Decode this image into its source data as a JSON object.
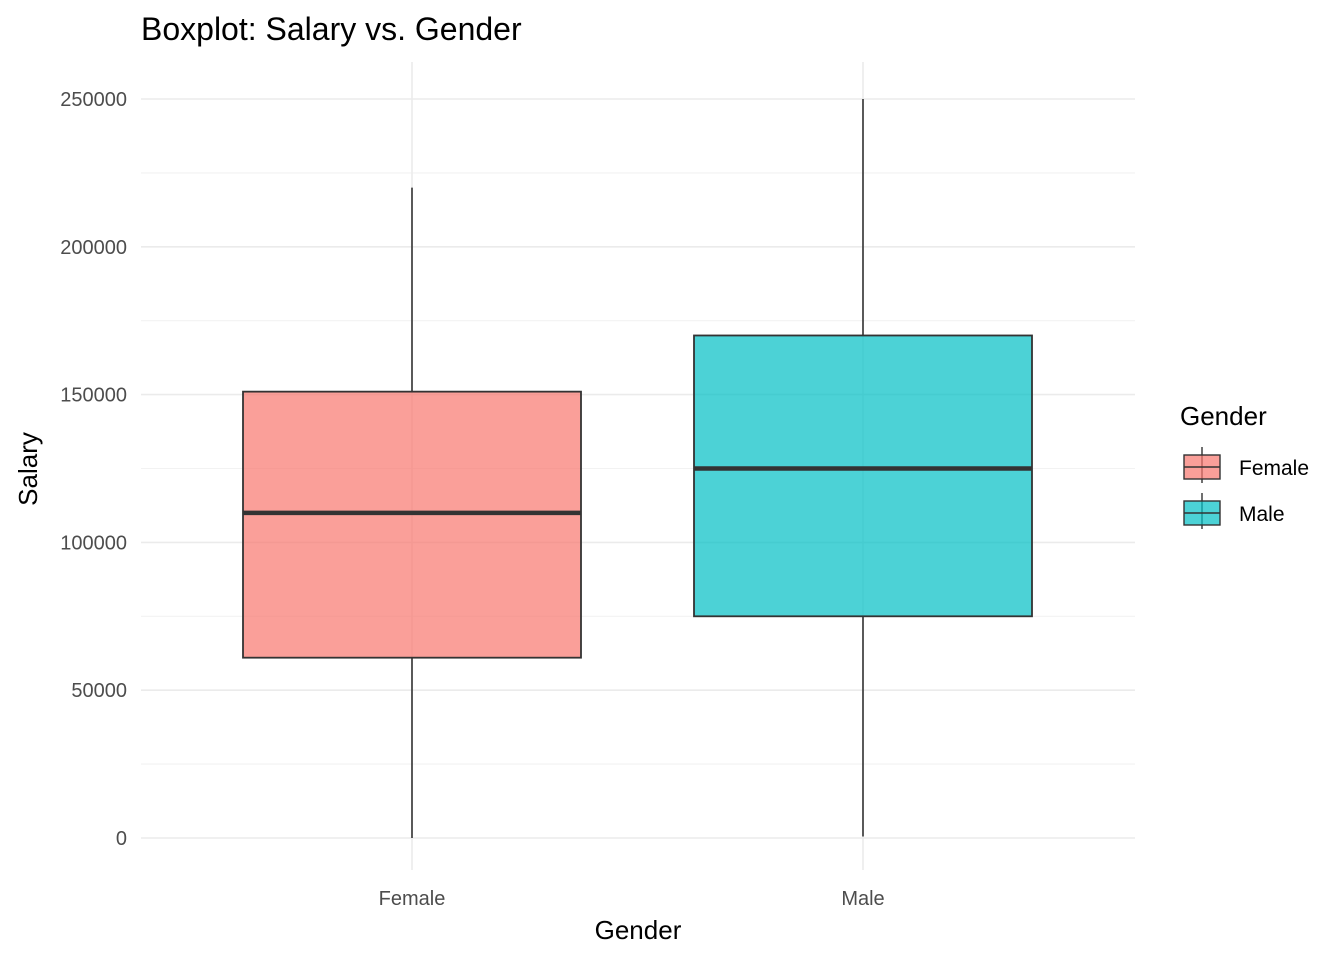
{
  "chart_data": {
    "type": "boxplot",
    "title": "Boxplot: Salary vs. Gender",
    "xlabel": "Gender",
    "ylabel": "Salary",
    "categories": [
      "Female",
      "Male"
    ],
    "ylim": [
      0,
      250000
    ],
    "y_ticks": [
      0,
      50000,
      100000,
      150000,
      200000,
      250000
    ],
    "y_tick_labels": [
      "0",
      "50000",
      "100000",
      "150000",
      "200000",
      "250000"
    ],
    "boxes": [
      {
        "category": "Female",
        "min": 0,
        "q1": 61000,
        "median": 110000,
        "q3": 151000,
        "max": 220000,
        "color": "#F8766D"
      },
      {
        "category": "Male",
        "min": 500,
        "q1": 75000,
        "median": 125000,
        "q3": 170000,
        "max": 250000,
        "color": "#00BFC4"
      }
    ],
    "legend": {
      "title": "Gender",
      "position": "right",
      "items": [
        {
          "label": "Female",
          "color": "#F8766D"
        },
        {
          "label": "Male",
          "color": "#00BFC4"
        }
      ]
    },
    "grid": true
  }
}
